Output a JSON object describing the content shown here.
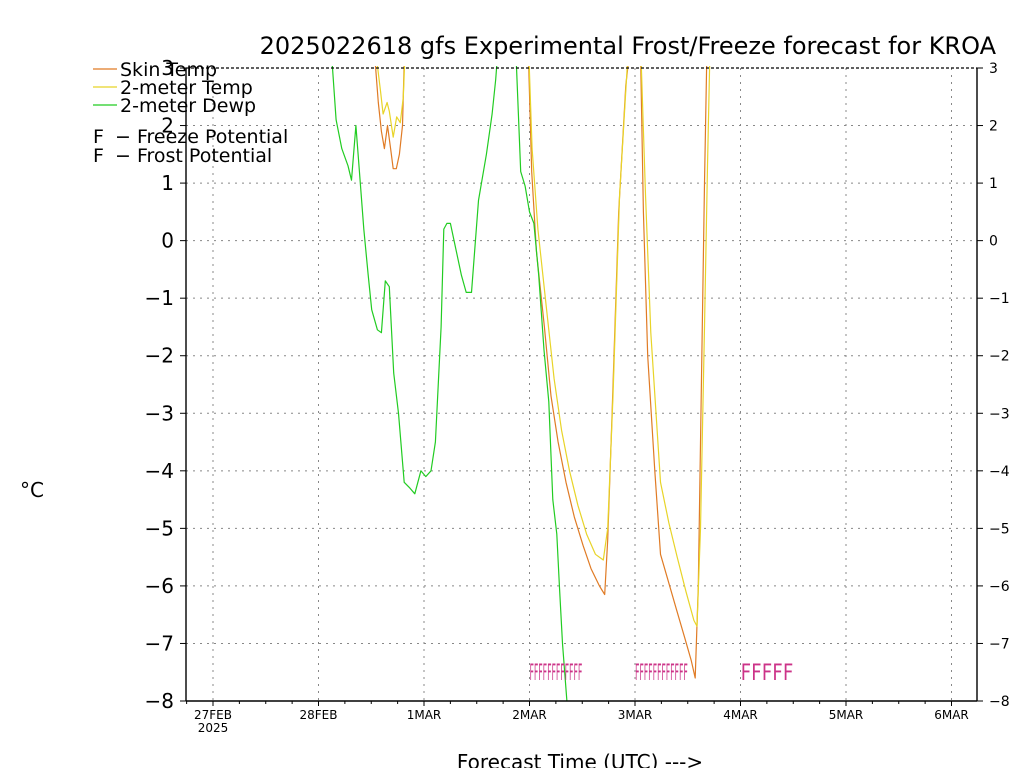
{
  "chart_data": {
    "type": "line",
    "title": "2025022618 gfs Experimental Frost/Freeze forecast for KROA",
    "xlabel": "Forecast Time (UTC) --->",
    "ylabel": "°C",
    "ylim": [
      -8,
      3
    ],
    "yticks": [
      3,
      2,
      1,
      0,
      -1,
      -2,
      -3,
      -4,
      -5,
      -6,
      -7,
      -8
    ],
    "ytick_labels": [
      "3",
      "2",
      "1",
      "0",
      "−1",
      "−2",
      "−3",
      "−4",
      "−5",
      "−6",
      "−7",
      "−8"
    ],
    "x_unit": "hours since 2025-02-27 00Z",
    "xlim": [
      -1.5,
      144
    ],
    "xticks": [
      {
        "h": 0,
        "label": "27FEB",
        "sub": "2025"
      },
      {
        "h": 24,
        "label": "28FEB"
      },
      {
        "h": 48,
        "label": "1MAR"
      },
      {
        "h": 72,
        "label": "2MAR"
      },
      {
        "h": 96,
        "label": "3MAR"
      },
      {
        "h": 120,
        "label": "4MAR"
      },
      {
        "h": 144,
        "label": "5MAR"
      },
      {
        "h": 168,
        "label": "6MAR"
      }
    ],
    "grid": true,
    "legend": "top-left",
    "series": [
      {
        "name": "Skin Temp",
        "color": "#e07b25",
        "points": [
          [
            36.9,
            3.1
          ],
          [
            37.6,
            2.4
          ],
          [
            38.3,
            1.9
          ],
          [
            39.0,
            1.6
          ],
          [
            39.7,
            2.0
          ],
          [
            40.4,
            1.6
          ],
          [
            41.0,
            1.25
          ],
          [
            41.7,
            1.25
          ],
          [
            42.4,
            1.5
          ],
          [
            43.1,
            2.0
          ],
          [
            43.5,
            3.1
          ],
          [
            71.8,
            3.1
          ],
          [
            72.5,
            1.2
          ],
          [
            73.6,
            -0.2
          ],
          [
            75.4,
            -1.5
          ],
          [
            76.9,
            -2.7
          ],
          [
            78.5,
            -3.5
          ],
          [
            80.3,
            -4.2
          ],
          [
            82.2,
            -4.8
          ],
          [
            84.2,
            -5.3
          ],
          [
            86.0,
            -5.7
          ],
          [
            87.9,
            -6.0
          ],
          [
            89.1,
            -6.15
          ],
          [
            89.8,
            -5.2
          ],
          [
            90.8,
            -3.0
          ],
          [
            92.3,
            0.5
          ],
          [
            93.9,
            2.7
          ],
          [
            94.5,
            3.1
          ],
          [
            97.3,
            3.1
          ],
          [
            97.9,
            0.5
          ],
          [
            98.9,
            -2.0
          ],
          [
            100.5,
            -4.0
          ],
          [
            101.8,
            -5.45
          ],
          [
            103.5,
            -5.9
          ],
          [
            105.4,
            -6.4
          ],
          [
            107.3,
            -6.9
          ],
          [
            108.8,
            -7.3
          ],
          [
            109.7,
            -7.6
          ],
          [
            110.4,
            -6.0
          ],
          [
            111.1,
            -2.5
          ],
          [
            111.8,
            1.0
          ],
          [
            112.3,
            3.1
          ]
        ]
      },
      {
        "name": "2-meter Temp",
        "color": "#e8d428",
        "points": [
          [
            37.3,
            3.1
          ],
          [
            38.1,
            2.6
          ],
          [
            38.7,
            2.2
          ],
          [
            39.6,
            2.4
          ],
          [
            40.1,
            2.25
          ],
          [
            41.0,
            1.8
          ],
          [
            41.8,
            2.15
          ],
          [
            42.6,
            2.05
          ],
          [
            43.3,
            2.5
          ],
          [
            43.6,
            3.1
          ],
          [
            71.9,
            3.1
          ],
          [
            72.6,
            1.6
          ],
          [
            73.9,
            0.2
          ],
          [
            75.9,
            -1.2
          ],
          [
            77.6,
            -2.4
          ],
          [
            79.3,
            -3.3
          ],
          [
            81.1,
            -4.0
          ],
          [
            83.0,
            -4.6
          ],
          [
            85.0,
            -5.1
          ],
          [
            87.0,
            -5.45
          ],
          [
            88.8,
            -5.55
          ],
          [
            89.8,
            -5.0
          ],
          [
            91.0,
            -2.7
          ],
          [
            92.5,
            0.8
          ],
          [
            94.3,
            3.1
          ],
          [
            97.4,
            3.1
          ],
          [
            98.4,
            0.8
          ],
          [
            99.6,
            -1.6
          ],
          [
            101.8,
            -4.2
          ],
          [
            103.7,
            -4.9
          ],
          [
            105.6,
            -5.5
          ],
          [
            107.6,
            -6.1
          ],
          [
            109.4,
            -6.6
          ],
          [
            110.1,
            -6.7
          ],
          [
            110.9,
            -5.0
          ],
          [
            111.8,
            -1.5
          ],
          [
            112.5,
            1.3
          ],
          [
            113.0,
            3.1
          ]
        ]
      },
      {
        "name": "2-meter Dewp",
        "color": "#22cc22",
        "points": [
          [
            27.1,
            3.1
          ],
          [
            28.0,
            2.1
          ],
          [
            29.3,
            1.6
          ],
          [
            30.7,
            1.3
          ],
          [
            31.5,
            1.05
          ],
          [
            32.5,
            2.0
          ],
          [
            33.5,
            1.0
          ],
          [
            34.3,
            0.2
          ],
          [
            35.3,
            -0.6
          ],
          [
            36.1,
            -1.2
          ],
          [
            37.4,
            -1.55
          ],
          [
            38.3,
            -1.6
          ],
          [
            39.2,
            -0.7
          ],
          [
            40.1,
            -0.8
          ],
          [
            41.1,
            -2.3
          ],
          [
            42.2,
            -3.0
          ],
          [
            43.5,
            -4.2
          ],
          [
            44.8,
            -4.3
          ],
          [
            45.9,
            -4.4
          ],
          [
            47.3,
            -4.0
          ],
          [
            48.4,
            -4.1
          ],
          [
            49.6,
            -4.0
          ],
          [
            50.6,
            -3.5
          ],
          [
            51.9,
            -1.5
          ],
          [
            52.5,
            0.2
          ],
          [
            53.2,
            0.3
          ],
          [
            54.0,
            0.3
          ],
          [
            55.4,
            -0.2
          ],
          [
            56.5,
            -0.6
          ],
          [
            57.6,
            -0.9
          ],
          [
            58.8,
            -0.9
          ],
          [
            60.4,
            0.7
          ],
          [
            62.2,
            1.5
          ],
          [
            63.5,
            2.2
          ],
          [
            64.3,
            2.8
          ],
          [
            64.6,
            3.1
          ],
          [
            69.0,
            3.1
          ],
          [
            70.0,
            1.2
          ],
          [
            71.0,
            0.95
          ],
          [
            72.0,
            0.5
          ],
          [
            73.0,
            0.3
          ],
          [
            74.1,
            -0.6
          ],
          [
            75.3,
            -1.9
          ],
          [
            76.4,
            -2.8
          ],
          [
            77.3,
            -4.5
          ],
          [
            78.2,
            -5.1
          ],
          [
            78.8,
            -6.0
          ],
          [
            79.5,
            -7.0
          ],
          [
            80.5,
            -8.0
          ]
        ]
      }
    ],
    "annotations": [
      {
        "text": "FFFFFFFFFFFF",
        "x_start": 72.0,
        "x_end": 84.0,
        "y": -7.5,
        "color": "#cc3388"
      },
      {
        "text": "FFFFFFFFFFFF",
        "x_start": 96.0,
        "x_end": 108.0,
        "y": -7.5,
        "color": "#cc3388"
      },
      {
        "text": "FFFFF",
        "x_start": 120.0,
        "x_end": 132.0,
        "y": -7.5,
        "color": "#cc3388"
      }
    ],
    "legend_entries": [
      {
        "name": "Skin Temp",
        "color": "#e07b25"
      },
      {
        "name": "2-meter Temp",
        "color": "#e8d428"
      },
      {
        "name": "2-meter Dewp",
        "color": "#22cc22"
      }
    ],
    "potential_legend": [
      {
        "symbol": "F",
        "text": "− Freeze Potential",
        "color": "#cc3388"
      },
      {
        "symbol": "F",
        "text": "− Frost Potential",
        "color": "#5566dd"
      }
    ],
    "colors": {
      "axis": "#000000",
      "grid": "#888888",
      "background": "#ffffff"
    }
  }
}
